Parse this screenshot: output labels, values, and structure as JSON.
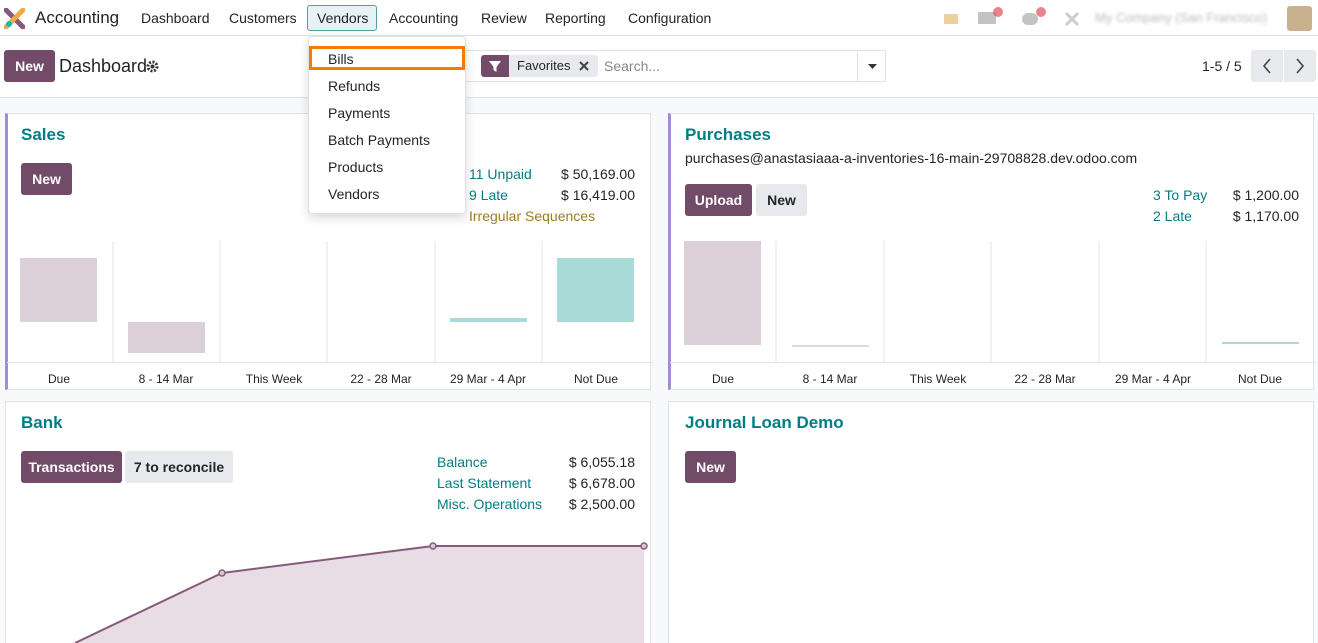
{
  "navbar": {
    "app": "Accounting",
    "menu": [
      "Dashboard",
      "Customers",
      "Vendors",
      "Accounting",
      "Review",
      "Reporting",
      "Configuration"
    ],
    "company": "My Company (San Francisco)"
  },
  "dropdown": {
    "items": [
      "Bills",
      "Refunds",
      "Payments",
      "Batch Payments",
      "Products",
      "Vendors"
    ]
  },
  "control_panel": {
    "new_button": "New",
    "title": "Dashboard",
    "facet": "Favorites",
    "search_placeholder": "Search...",
    "pager": "1-5 / 5"
  },
  "cards": [
    {
      "title": "Sales",
      "buttons": [
        "New"
      ],
      "stats": [
        {
          "label": "11 Unpaid",
          "amount": "$ 50,169.00"
        },
        {
          "label": "9 Late",
          "amount": "$ 16,419.00"
        },
        {
          "label": "Irregular Sequences"
        }
      ],
      "graph_labels": [
        "Due",
        "8 - 14 Mar",
        "This Week",
        "22 - 28 Mar",
        "29 Mar - 4 Apr",
        "Not Due"
      ]
    },
    {
      "title": "Purchases",
      "email": "purchases@anastasiaaa-a-inventories-16-main-29708828.dev.odoo.com",
      "buttons": [
        "Upload",
        "New"
      ],
      "stats": [
        {
          "label": "3 To Pay",
          "amount": "$ 1,200.00"
        },
        {
          "label": "2 Late",
          "amount": "$ 1,170.00"
        }
      ],
      "graph_labels": [
        "Due",
        "8 - 14 Mar",
        "This Week",
        "22 - 28 Mar",
        "29 Mar - 4 Apr",
        "Not Due"
      ]
    },
    {
      "title": "Bank",
      "buttons": [
        "Transactions",
        "7 to reconcile"
      ],
      "stats": [
        {
          "label": "Balance",
          "amount": "$ 6,055.18"
        },
        {
          "label": "Last Statement",
          "amount": "$ 6,678.00"
        },
        {
          "label": "Misc. Operations",
          "amount": "$ 2,500.00"
        }
      ]
    },
    {
      "title": "Journal Loan Demo",
      "buttons": [
        "New"
      ]
    }
  ]
}
